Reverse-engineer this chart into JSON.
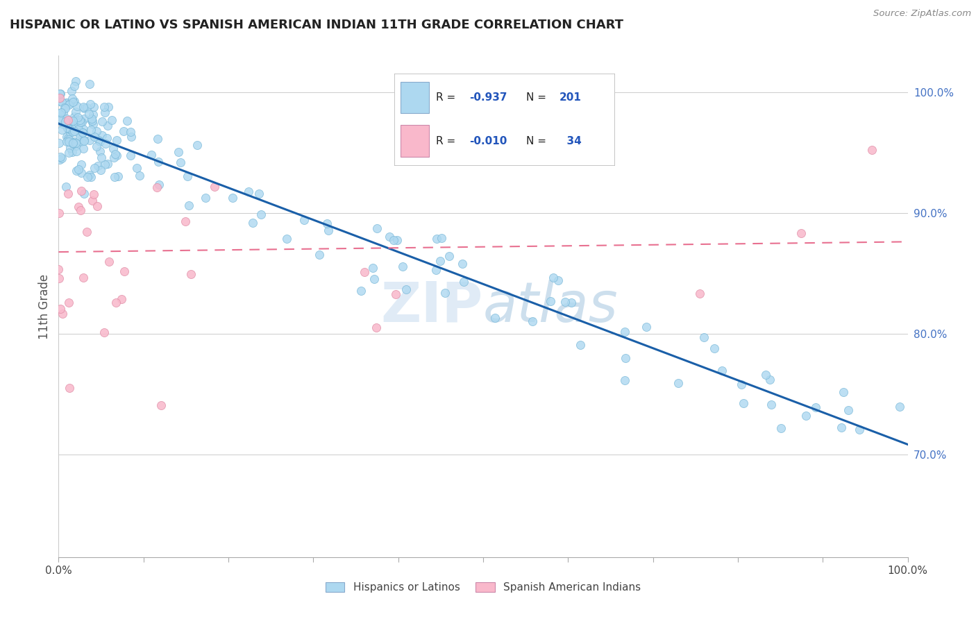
{
  "title": "HISPANIC OR LATINO VS SPANISH AMERICAN INDIAN 11TH GRADE CORRELATION CHART",
  "source_text": "Source: ZipAtlas.com",
  "ylabel": "11th Grade",
  "r_blue": -0.937,
  "n_blue": 201,
  "r_pink": -0.01,
  "n_pink": 34,
  "legend_label_blue": "Hispanics or Latinos",
  "legend_label_pink": "Spanish American Indians",
  "blue_color": "#ADD8F0",
  "pink_color": "#F9B8CB",
  "blue_line_color": "#1A5FA8",
  "pink_line_color": "#E87090",
  "watermark_zip": "ZIP",
  "watermark_atlas": "atlas",
  "ytick_values": [
    0.7,
    0.8,
    0.9,
    1.0
  ],
  "ytick_labels": [
    "70.0%",
    "80.0%",
    "90.0%",
    "100.0%"
  ],
  "xlim": [
    0.0,
    1.0
  ],
  "ylim": [
    0.615,
    1.03
  ]
}
